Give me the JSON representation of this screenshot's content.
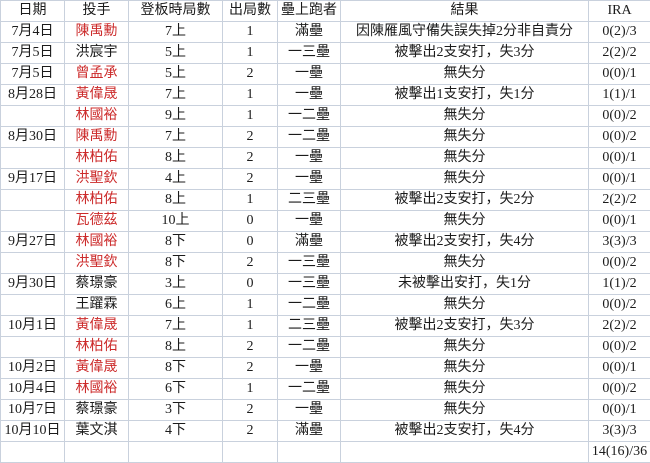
{
  "table": {
    "headers": [
      {
        "key": "date",
        "label": "日期"
      },
      {
        "key": "pitcher",
        "label": "投手"
      },
      {
        "key": "inning",
        "label": "登板時局數"
      },
      {
        "key": "outs",
        "label": "出局數"
      },
      {
        "key": "runners",
        "label": "壘上跑者"
      },
      {
        "key": "result",
        "label": "結果"
      },
      {
        "key": "ira",
        "label": "IRA"
      }
    ],
    "highlight_color": "#cc2b2b",
    "text_color": "#1b1b1b",
    "grid_color": "#c9d1dd",
    "rows": [
      {
        "date": "7月4日",
        "pitcher": "陳禹勳",
        "pitcher_highlighted": true,
        "inning": "7上",
        "outs": "1",
        "runners": "滿壘",
        "result": "因陳雁風守備失誤失掉2分非自責分",
        "ira": "0(2)/3"
      },
      {
        "date": "7月5日",
        "pitcher": "洪宸宇",
        "pitcher_highlighted": false,
        "inning": "5上",
        "outs": "1",
        "runners": "一三壘",
        "result": "被擊出2支安打，失3分",
        "ira": "2(2)/2"
      },
      {
        "date": "7月5日",
        "pitcher": "曾孟承",
        "pitcher_highlighted": true,
        "inning": "5上",
        "outs": "2",
        "runners": "一壘",
        "result": "無失分",
        "ira": "0(0)/1"
      },
      {
        "date": "8月28日",
        "pitcher": "黃偉晟",
        "pitcher_highlighted": true,
        "inning": "7上",
        "outs": "1",
        "runners": "一壘",
        "result": "被擊出1支安打，失1分",
        "ira": "1(1)/1"
      },
      {
        "date": "",
        "pitcher": "林國裕",
        "pitcher_highlighted": true,
        "inning": "9上",
        "outs": "1",
        "runners": "一二壘",
        "result": "無失分",
        "ira": "0(0)/2"
      },
      {
        "date": "8月30日",
        "pitcher": "陳禹勳",
        "pitcher_highlighted": true,
        "inning": "7上",
        "outs": "2",
        "runners": "一二壘",
        "result": "無失分",
        "ira": "0(0)/2"
      },
      {
        "date": "",
        "pitcher": "林柏佑",
        "pitcher_highlighted": true,
        "inning": "8上",
        "outs": "2",
        "runners": "一壘",
        "result": "無失分",
        "ira": "0(0)/1"
      },
      {
        "date": "9月17日",
        "pitcher": "洪聖欽",
        "pitcher_highlighted": true,
        "inning": "4上",
        "outs": "2",
        "runners": "一壘",
        "result": "無失分",
        "ira": "0(0)/1"
      },
      {
        "date": "",
        "pitcher": "林柏佑",
        "pitcher_highlighted": true,
        "inning": "8上",
        "outs": "1",
        "runners": "二三壘",
        "result": "被擊出2支安打，失2分",
        "ira": "2(2)/2"
      },
      {
        "date": "",
        "pitcher": "瓦德茲",
        "pitcher_highlighted": true,
        "inning": "10上",
        "outs": "0",
        "runners": "一壘",
        "result": "無失分",
        "ira": "0(0)/1"
      },
      {
        "date": "9月27日",
        "pitcher": "林國裕",
        "pitcher_highlighted": true,
        "inning": "8下",
        "outs": "0",
        "runners": "滿壘",
        "result": "被擊出2支安打，失4分",
        "ira": "3(3)/3"
      },
      {
        "date": "",
        "pitcher": "洪聖欽",
        "pitcher_highlighted": true,
        "inning": "8下",
        "outs": "2",
        "runners": "一三壘",
        "result": "無失分",
        "ira": "0(0)/2"
      },
      {
        "date": "9月30日",
        "pitcher": "蔡璟豪",
        "pitcher_highlighted": false,
        "inning": "3上",
        "outs": "0",
        "runners": "一三壘",
        "result": "未被擊出安打，失1分",
        "ira": "1(1)/2"
      },
      {
        "date": "",
        "pitcher": "王躍霖",
        "pitcher_highlighted": false,
        "inning": "6上",
        "outs": "1",
        "runners": "一二壘",
        "result": "無失分",
        "ira": "0(0)/2"
      },
      {
        "date": "10月1日",
        "pitcher": "黃偉晟",
        "pitcher_highlighted": true,
        "inning": "7上",
        "outs": "1",
        "runners": "二三壘",
        "result": "被擊出2支安打，失3分",
        "ira": "2(2)/2"
      },
      {
        "date": "",
        "pitcher": "林柏佑",
        "pitcher_highlighted": true,
        "inning": "8上",
        "outs": "2",
        "runners": "一二壘",
        "result": "無失分",
        "ira": "0(0)/2"
      },
      {
        "date": "10月2日",
        "pitcher": "黃偉晟",
        "pitcher_highlighted": true,
        "inning": "8下",
        "outs": "2",
        "runners": "一壘",
        "result": "無失分",
        "ira": "0(0)/1"
      },
      {
        "date": "10月4日",
        "pitcher": "林國裕",
        "pitcher_highlighted": true,
        "inning": "6下",
        "outs": "1",
        "runners": "一二壘",
        "result": "無失分",
        "ira": "0(0)/2"
      },
      {
        "date": "10月7日",
        "pitcher": "蔡璟豪",
        "pitcher_highlighted": false,
        "inning": "3下",
        "outs": "2",
        "runners": "一壘",
        "result": "無失分",
        "ira": "0(0)/1"
      },
      {
        "date": "10月10日",
        "pitcher": "葉文淇",
        "pitcher_highlighted": false,
        "inning": "4下",
        "outs": "2",
        "runners": "滿壘",
        "result": "被擊出2支安打，失4分",
        "ira": "3(3)/3"
      }
    ],
    "total_row": {
      "date": "",
      "pitcher": "",
      "inning": "",
      "outs": "",
      "runners": "",
      "result": "",
      "ira": "14(16)/36"
    }
  }
}
